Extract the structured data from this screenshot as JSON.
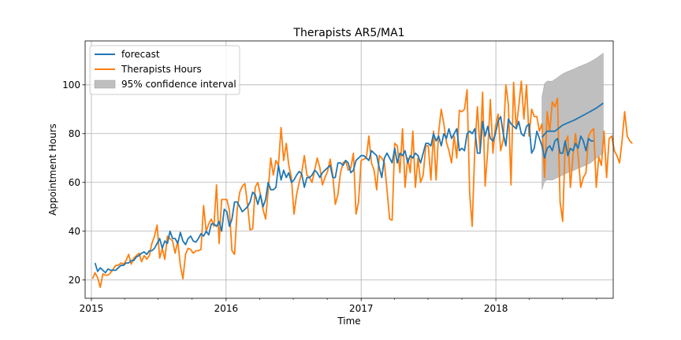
{
  "chart_data": {
    "type": "line",
    "title": "Therapists AR5/MA1",
    "xlabel": "Time",
    "ylabel": "Appointment Hours",
    "x_ticks": [
      "2015",
      "2016",
      "2017",
      "2018"
    ],
    "y_ticks": [
      20,
      40,
      60,
      80,
      100
    ],
    "xlim": [
      "2014-12-15",
      "2018-11-15"
    ],
    "ylim": [
      12.5,
      118
    ],
    "grid": true,
    "legend_placement": "top-left",
    "legend": [
      "forecast",
      "Therapists Hours",
      "95% confidence interval"
    ],
    "colors": {
      "forecast": "#1f77b4",
      "actual": "#ff7f0e",
      "confidence": "#bfbfbf"
    },
    "series": [
      {
        "name": "Therapists Hours",
        "x_start": "2015-01-04",
        "frequency": "weekly",
        "values": [
          20.5,
          23,
          21,
          17,
          22.5,
          22,
          22,
          23,
          24.5,
          26,
          26,
          27,
          26.5,
          28,
          30.5,
          26.5,
          29,
          30,
          31,
          27.5,
          30,
          28.5,
          30,
          35,
          38,
          42.5,
          29,
          33,
          28.5,
          38,
          37,
          36,
          31,
          36,
          26,
          20.5,
          30.5,
          33,
          32.5,
          31,
          32,
          32,
          32.5,
          50.5,
          40,
          43,
          45,
          42,
          59,
          35,
          53,
          53,
          53,
          48.5,
          32,
          30.5,
          49,
          56,
          58.5,
          59.5,
          51,
          40.5,
          41,
          58,
          60,
          55,
          49,
          45,
          56.5,
          70,
          63,
          69,
          67,
          82.5,
          69,
          76,
          67,
          62,
          47,
          55,
          60,
          64,
          71,
          63,
          62,
          60,
          65,
          70,
          66,
          59,
          62,
          64.5,
          69.5,
          63,
          51,
          55,
          64,
          68,
          69,
          65,
          66,
          72,
          47,
          52,
          69,
          69.5,
          70,
          79,
          68,
          65,
          57,
          71,
          70,
          68,
          57,
          45,
          44.5,
          76,
          75,
          64,
          82,
          58,
          70,
          64,
          81,
          58,
          70,
          60,
          63,
          75,
          75,
          61,
          81,
          61,
          80.5,
          90,
          84,
          76.5,
          73,
          68,
          79,
          70,
          89.5,
          89,
          90,
          98,
          55.5,
          42,
          74,
          91,
          73,
          97,
          58.5,
          73,
          94,
          72,
          83,
          88,
          73,
          77.5,
          100,
          92,
          59,
          101,
          82,
          91,
          101.5,
          86,
          100,
          79,
          90,
          87,
          87,
          81,
          84,
          62,
          89,
          81,
          93,
          91,
          94.5,
          52,
          44,
          76,
          79,
          58,
          71,
          80,
          71,
          58,
          62,
          64,
          79,
          81,
          82,
          58,
          70.5,
          67,
          81,
          62,
          78,
          79,
          73,
          71,
          68,
          77,
          89,
          79,
          77,
          76
        ],
        "color": "#ff7f0e"
      },
      {
        "name": "forecast",
        "x_start": "2015-01-11",
        "frequency": "weekly",
        "values": [
          27,
          23.5,
          25,
          24,
          23,
          24.5,
          24,
          24,
          24,
          25,
          26,
          26,
          27,
          27,
          28,
          28,
          29.5,
          30,
          31,
          31.5,
          30.5,
          32,
          32,
          33,
          35,
          37,
          33,
          36,
          35,
          40,
          37,
          37,
          35,
          39.5,
          36,
          34.5,
          37,
          38,
          36,
          35.5,
          37,
          39,
          38,
          40,
          38.5,
          43,
          43,
          42,
          44,
          40,
          49,
          48,
          42,
          45,
          52,
          52,
          50,
          48,
          49,
          50,
          52,
          56,
          55,
          51,
          55,
          50,
          53,
          60,
          57,
          57,
          58,
          67,
          61,
          65,
          62,
          64,
          60,
          61,
          63,
          64.5,
          63.5,
          58,
          62,
          62,
          63,
          65,
          64,
          62,
          64,
          65,
          66,
          67,
          62,
          62,
          68,
          68,
          67,
          69,
          68,
          64,
          65,
          69,
          70,
          71,
          71,
          70,
          69,
          73,
          72,
          71,
          66,
          62,
          70,
          72,
          70,
          68,
          74,
          68,
          72,
          71,
          73,
          68,
          71,
          70,
          72,
          71,
          68,
          72,
          76,
          76,
          75,
          80,
          77,
          79,
          75,
          80,
          78,
          82,
          78,
          80,
          82,
          73,
          74,
          73,
          80,
          81,
          80,
          82,
          72,
          72,
          85,
          79,
          83,
          78,
          77,
          80,
          85,
          87,
          80,
          75,
          86,
          84,
          83,
          82,
          85,
          80,
          79,
          83,
          84,
          72,
          74,
          81,
          78,
          75,
          70,
          74,
          75,
          73,
          77,
          78,
          72,
          72,
          77,
          71,
          74,
          73,
          76,
          74,
          79,
          77,
          73,
          78,
          77,
          77
        ],
        "color": "#1f77b4"
      },
      {
        "name": "forecast (out-of-sample)",
        "x": [
          "2018-05-06",
          "2018-05-20",
          "2018-06-10",
          "2018-07-01",
          "2018-08-01",
          "2018-09-01",
          "2018-10-01",
          "2018-10-19"
        ],
        "values": [
          78.5,
          81,
          81,
          83.5,
          85.5,
          88,
          90.5,
          92.5
        ],
        "color": "#1f77b4"
      }
    ],
    "confidence_interval": {
      "x": [
        "2018-05-06",
        "2018-05-13",
        "2018-05-20",
        "2018-06-03",
        "2018-06-17",
        "2018-07-01",
        "2018-07-15",
        "2018-08-01",
        "2018-08-15",
        "2018-09-01",
        "2018-09-15",
        "2018-10-01",
        "2018-10-19"
      ],
      "upper": [
        95,
        100.5,
        101.5,
        101.5,
        103,
        104.5,
        105.5,
        106.5,
        107.5,
        108.5,
        109.5,
        111,
        113
      ],
      "lower": [
        57,
        60.5,
        61,
        61,
        62,
        63,
        64,
        65,
        66,
        67,
        68,
        70,
        72
      ]
    }
  }
}
